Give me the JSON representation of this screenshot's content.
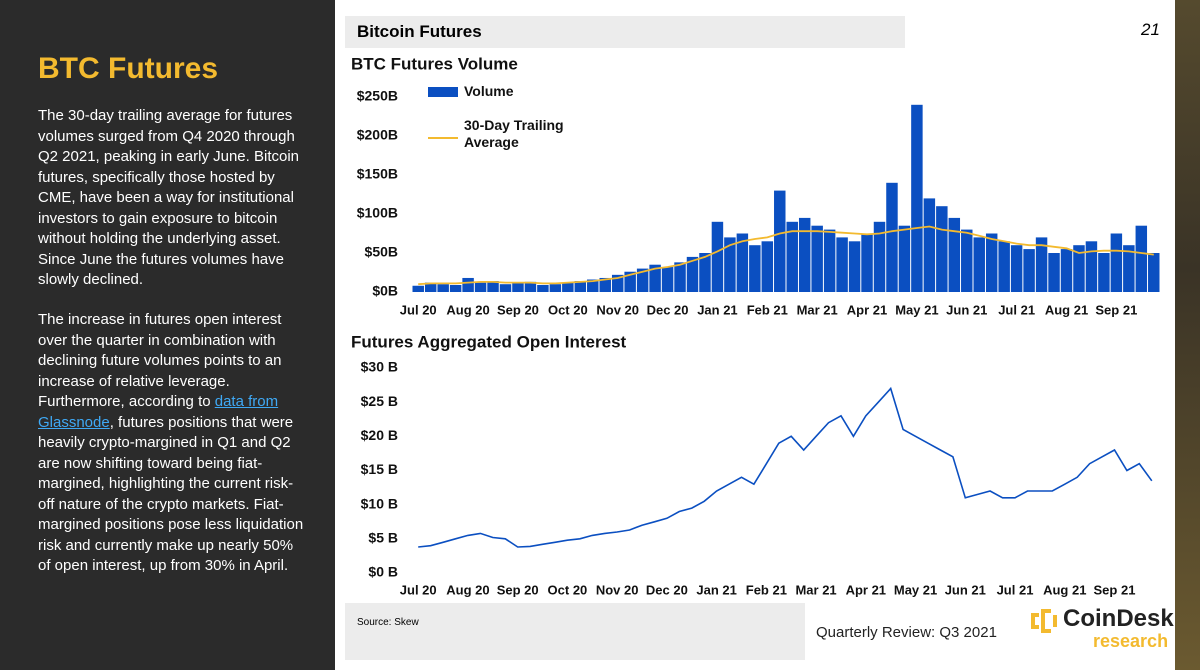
{
  "sidebar": {
    "title": "BTC Futures",
    "paragraph_1": "The 30-day trailing average for futures volumes surged from Q4 2020 through Q2 2021, peaking in early June. Bitcoin futures, specifically those hosted by CME, have been a way for institutional investors to gain exposure to bitcoin without holding the underlying asset. Since June the futures volumes have slowly declined.",
    "paragraph_2_start": "The increase in futures open interest over the quarter in combination with declining future volumes points to an increase of relative leverage. Furthermore, according to",
    "paragraph_2_link": "data from Glassnode",
    "paragraph_2_end": ", futures positions that were heavily crypto-margined in Q1 and Q2 are now shifting toward being fiat-margined, highlighting the current risk-off nature of the crypto markets. Fiat-margined positions pose less liquidation risk and currently make up nearly 50% of open interest, up from 30% in April."
  },
  "header": {
    "title": "Bitcoin Futures",
    "page_number": "21"
  },
  "chart_data": [
    {
      "type": "bar",
      "title": "BTC Futures Volume",
      "categories": [
        "Jul 20",
        null,
        null,
        null,
        "Aug 20",
        null,
        null,
        null,
        "Sep 20",
        null,
        null,
        null,
        "Oct 20",
        null,
        null,
        null,
        "Nov 20",
        null,
        null,
        null,
        "Dec 20",
        null,
        null,
        null,
        "Jan 21",
        null,
        null,
        null,
        "Feb 21",
        null,
        null,
        null,
        "Mar 21",
        null,
        null,
        null,
        "Apr 21",
        null,
        null,
        null,
        "May 21",
        null,
        null,
        null,
        "Jun 21",
        null,
        null,
        null,
        "Jul 21",
        null,
        null,
        null,
        "Aug 21",
        null,
        null,
        null,
        "Sep 21",
        null,
        null,
        null
      ],
      "series": [
        {
          "name": "Volume",
          "color": "#0b4fc1",
          "values": [
            8,
            12,
            10,
            9,
            18,
            12,
            14,
            10,
            11,
            13,
            9,
            10,
            12,
            14,
            16,
            18,
            22,
            26,
            30,
            35,
            32,
            38,
            45,
            50,
            90,
            70,
            75,
            60,
            65,
            130,
            90,
            95,
            85,
            80,
            70,
            65,
            75,
            90,
            140,
            85,
            240,
            120,
            110,
            95,
            80,
            70,
            75,
            65,
            60,
            55,
            70,
            50,
            55,
            60,
            65,
            50,
            75,
            60,
            85,
            50
          ]
        },
        {
          "name": "30-Day Trailing Average",
          "color": "#f3ba2f",
          "type": "line",
          "values": [
            10,
            11,
            11,
            11,
            12,
            13,
            13,
            12,
            12,
            12,
            11,
            11,
            12,
            13,
            14,
            16,
            18,
            22,
            26,
            30,
            32,
            35,
            40,
            45,
            52,
            60,
            65,
            68,
            70,
            75,
            78,
            78,
            78,
            77,
            76,
            75,
            74,
            75,
            78,
            80,
            82,
            84,
            80,
            78,
            76,
            72,
            68,
            65,
            62,
            60,
            60,
            58,
            56,
            50,
            52,
            53,
            53,
            52,
            50,
            48
          ]
        }
      ],
      "ylim": [
        0,
        250
      ],
      "yticks": [
        {
          "value": 0,
          "label": "$0B"
        },
        {
          "value": 50,
          "label": "$50B"
        },
        {
          "value": 100,
          "label": "$100B"
        },
        {
          "value": 150,
          "label": "$150B"
        },
        {
          "value": 200,
          "label": "$200B"
        },
        {
          "value": 250,
          "label": "$250B"
        }
      ],
      "legend": "upper left"
    },
    {
      "type": "line",
      "title": "Futures Aggregated Open Interest",
      "categories": [
        "Jul 20",
        null,
        null,
        null,
        "Aug 20",
        null,
        null,
        null,
        "Sep 20",
        null,
        null,
        null,
        "Oct 20",
        null,
        null,
        null,
        "Nov 20",
        null,
        null,
        null,
        "Dec 20",
        null,
        null,
        null,
        "Jan 21",
        null,
        null,
        null,
        "Feb 21",
        null,
        null,
        null,
        "Mar 21",
        null,
        null,
        null,
        "Apr 21",
        null,
        null,
        null,
        "May 21",
        null,
        null,
        null,
        "Jun 21",
        null,
        null,
        null,
        "Jul 21",
        null,
        null,
        null,
        "Aug 21",
        null,
        null,
        null,
        "Sep 21",
        null,
        null,
        null
      ],
      "series": [
        {
          "color": "#0b4fc1",
          "values": [
            3.8,
            4,
            4.5,
            5,
            5.5,
            5.8,
            5.2,
            5,
            3.8,
            3.9,
            4.2,
            4.5,
            4.8,
            5,
            5.5,
            5.8,
            6,
            6.3,
            7,
            7.5,
            8,
            9,
            9.5,
            10.5,
            12,
            13,
            14,
            13,
            16,
            19,
            20,
            18,
            20,
            22,
            23,
            20,
            23,
            25,
            27,
            21,
            20,
            19,
            18,
            17,
            11,
            11.5,
            12,
            11,
            11,
            12,
            12,
            12,
            13,
            14,
            16,
            17,
            18,
            15,
            16,
            13.5
          ]
        }
      ],
      "ylim": [
        0,
        30
      ],
      "yticks": [
        {
          "value": 0,
          "label": "$0 B"
        },
        {
          "value": 5,
          "label": "$5 B"
        },
        {
          "value": 10,
          "label": "$10 B"
        },
        {
          "value": 15,
          "label": "$15 B"
        },
        {
          "value": 20,
          "label": "$20 B"
        },
        {
          "value": 25,
          "label": "$25 B"
        },
        {
          "value": 30,
          "label": "$30 B"
        }
      ]
    }
  ],
  "footer": {
    "source": "Source: Skew",
    "report": "Quarterly Review: Q3 2021",
    "logo_name": "CoinDesk",
    "logo_sub": "research"
  }
}
